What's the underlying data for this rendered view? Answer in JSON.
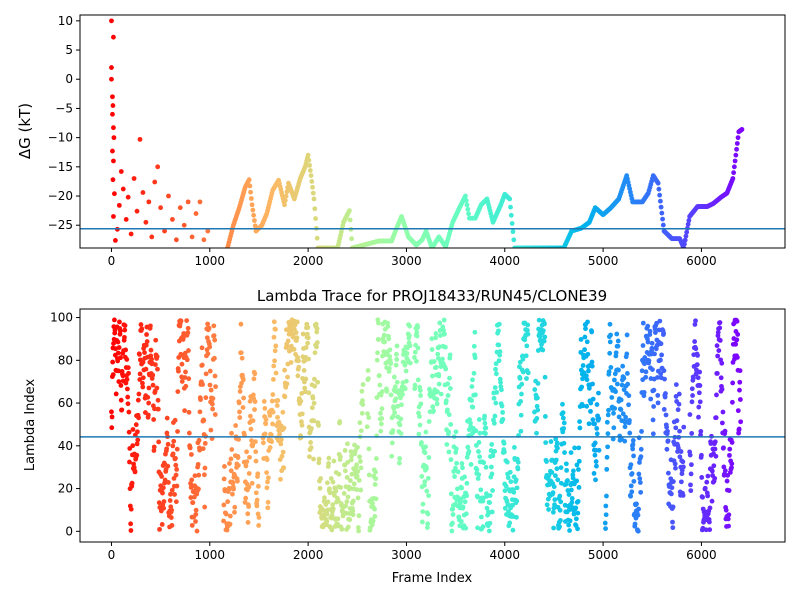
{
  "chart_data": [
    {
      "type": "scatter",
      "title": "",
      "xlabel": "",
      "ylabel": "ΔG (kT)",
      "xlim": [
        -320,
        6850
      ],
      "ylim": [
        -28.9,
        11.0
      ],
      "xticks": [
        0,
        1000,
        2000,
        3000,
        4000,
        5000,
        6000
      ],
      "yticks": [
        10,
        5,
        0,
        -5,
        -10,
        -15,
        -20,
        -25
      ],
      "ytick_labels": [
        "10",
        "5",
        "0",
        "−5",
        "−10",
        "−15",
        "−20",
        "−25"
      ],
      "hline": -25.6,
      "hline_color": "#1f77b4",
      "colormap": "rainbow (red at frame 0 → violet at last frame)",
      "grid": false,
      "legend": "none",
      "series": [
        {
          "values_early": [
            [
              0,
              10.0
            ],
            [
              0,
              0.0
            ],
            [
              0,
              2.0
            ],
            [
              20,
              7.2
            ],
            [
              10,
              -3.0
            ],
            [
              15,
              -4.5
            ],
            [
              10,
              -6.0
            ],
            [
              20,
              -8.3
            ],
            [
              25,
              -10.0
            ],
            [
              10,
              -12.3
            ],
            [
              20,
              -14.0
            ],
            [
              15,
              -17.2
            ],
            [
              30,
              -19.6
            ],
            [
              20,
              -23.5
            ],
            [
              40,
              -27.6
            ],
            [
              60,
              -25.7
            ],
            [
              80,
              -21.6
            ],
            [
              100,
              -15.8
            ],
            [
              120,
              -18.8
            ],
            [
              150,
              -24.0
            ],
            [
              170,
              -20.2
            ],
            [
              200,
              -26.5
            ],
            [
              230,
              -17.0
            ],
            [
              260,
              -22.6
            ],
            [
              290,
              -10.3
            ],
            [
              320,
              -19.4
            ],
            [
              350,
              -24.5
            ],
            [
              380,
              -21.0
            ],
            [
              410,
              -27.0
            ],
            [
              440,
              -17.6
            ],
            [
              470,
              -15.0
            ],
            [
              500,
              -22.0
            ],
            [
              540,
              -26.0
            ],
            [
              580,
              -20.0
            ],
            [
              620,
              -24.0
            ],
            [
              660,
              -27.5
            ],
            [
              700,
              -22.0
            ],
            [
              740,
              -25.0
            ],
            [
              780,
              -21.0
            ],
            [
              820,
              -27.0
            ],
            [
              860,
              -23.0
            ],
            [
              900,
              -21.0
            ],
            [
              940,
              -27.5
            ],
            [
              980,
              -26.0
            ]
          ],
          "trace": [
            [
              1180,
              -28.9
            ],
            [
              1240,
              -25.0
            ],
            [
              1300,
              -22.0
            ],
            [
              1360,
              -18.5
            ],
            [
              1400,
              -17.2
            ],
            [
              1430,
              -21.5
            ],
            [
              1470,
              -26.0
            ],
            [
              1530,
              -25.0
            ],
            [
              1580,
              -23.0
            ],
            [
              1640,
              -19.0
            ],
            [
              1700,
              -17.3
            ],
            [
              1760,
              -21.5
            ],
            [
              1800,
              -17.8
            ],
            [
              1860,
              -20.5
            ],
            [
              1920,
              -17.0
            ],
            [
              1970,
              -15.0
            ],
            [
              2000,
              -13.0
            ],
            [
              2030,
              -16.5
            ],
            [
              2060,
              -20.5
            ],
            [
              2100,
              -28.9
            ],
            [
              2300,
              -28.9
            ],
            [
              2360,
              -24.5
            ],
            [
              2420,
              -22.5
            ],
            [
              2450,
              -28.9
            ],
            [
              2720,
              -27.7
            ],
            [
              2850,
              -27.7
            ],
            [
              2900,
              -25.5
            ],
            [
              2950,
              -23.5
            ],
            [
              3020,
              -27.0
            ],
            [
              3100,
              -28.4
            ],
            [
              3160,
              -27.5
            ],
            [
              3200,
              -26.0
            ],
            [
              3260,
              -28.9
            ],
            [
              3330,
              -27.0
            ],
            [
              3400,
              -28.7
            ],
            [
              3470,
              -24.5
            ],
            [
              3540,
              -22.0
            ],
            [
              3600,
              -20.0
            ],
            [
              3640,
              -23.8
            ],
            [
              3700,
              -23.8
            ],
            [
              3760,
              -21.5
            ],
            [
              3820,
              -20.5
            ],
            [
              3880,
              -24.5
            ],
            [
              3960,
              -21.5
            ],
            [
              4000,
              -19.7
            ],
            [
              4050,
              -20.5
            ],
            [
              4100,
              -28.9
            ],
            [
              4600,
              -28.9
            ],
            [
              4680,
              -26.0
            ],
            [
              4780,
              -25.5
            ],
            [
              4860,
              -24.5
            ],
            [
              4920,
              -22.0
            ],
            [
              5000,
              -23.2
            ],
            [
              5080,
              -22.0
            ],
            [
              5160,
              -20.5
            ],
            [
              5240,
              -16.5
            ],
            [
              5300,
              -21.0
            ],
            [
              5400,
              -21.0
            ],
            [
              5460,
              -19.5
            ],
            [
              5510,
              -16.5
            ],
            [
              5560,
              -17.8
            ],
            [
              5620,
              -26.0
            ],
            [
              5700,
              -27.3
            ],
            [
              5780,
              -27.3
            ],
            [
              5820,
              -28.9
            ],
            [
              5880,
              -23.5
            ],
            [
              5960,
              -21.8
            ],
            [
              6060,
              -21.8
            ],
            [
              6120,
              -21.3
            ],
            [
              6200,
              -20.2
            ],
            [
              6260,
              -19.5
            ],
            [
              6320,
              -17.0
            ],
            [
              6380,
              -9.0
            ],
            [
              6420,
              -8.5
            ]
          ]
        }
      ]
    },
    {
      "type": "scatter",
      "title": "Lambda Trace for PROJ18433/RUN45/CLONE39",
      "xlabel": "Frame Index",
      "ylabel": "Lambda Index",
      "xlim": [
        -320,
        6850
      ],
      "ylim": [
        -5,
        104
      ],
      "xticks": [
        0,
        1000,
        2000,
        3000,
        4000,
        5000,
        6000
      ],
      "yticks": [
        0,
        20,
        40,
        60,
        80,
        100
      ],
      "hline": 44.2,
      "hline_color": "#1f77b4",
      "colormap": "rainbow (red at frame 0 → violet at last frame)",
      "grid": false,
      "legend": "none",
      "frame_range": [
        0,
        6400
      ],
      "lambda_range": [
        0,
        99
      ],
      "gaps_in_frames": [
        [
          1060,
          1140
        ],
        [
          1500,
          1540
        ],
        [
          2560,
          2600
        ],
        [
          3040,
          3080
        ],
        [
          4240,
          4300
        ],
        [
          4960,
          5020
        ],
        [
          5820,
          5880
        ]
      ]
    }
  ]
}
